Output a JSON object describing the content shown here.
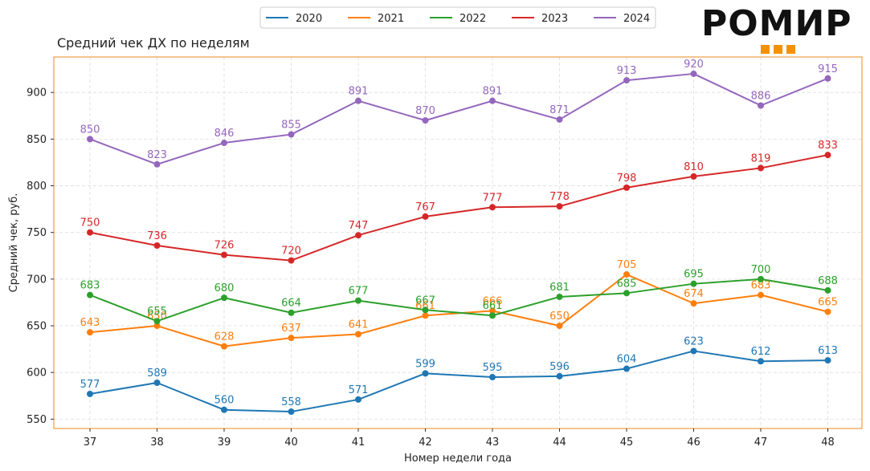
{
  "logo": {
    "text": "РОМИР",
    "accent_color": "#f39200"
  },
  "chart_data": {
    "type": "line",
    "title": "Средний чек ДХ по неделям",
    "xlabel": "Номер недели года",
    "ylabel": "Средний чек, руб.",
    "x": [
      37,
      38,
      39,
      40,
      41,
      42,
      43,
      44,
      45,
      46,
      47,
      48
    ],
    "ylim": [
      540,
      938
    ],
    "yticks": [
      550,
      600,
      650,
      700,
      750,
      800,
      850,
      900
    ],
    "grid": true,
    "legend_position": "top-center",
    "frame_color": "#e8891c",
    "series": [
      {
        "name": "2020",
        "color": "#1f77b4",
        "values": [
          577,
          589,
          560,
          558,
          571,
          599,
          595,
          596,
          604,
          623,
          612,
          613
        ]
      },
      {
        "name": "2021",
        "color": "#ff7f0e",
        "values": [
          643,
          650,
          628,
          637,
          641,
          661,
          666,
          650,
          705,
          674,
          683,
          665
        ]
      },
      {
        "name": "2022",
        "color": "#2ca02c",
        "values": [
          683,
          655,
          680,
          664,
          677,
          667,
          661,
          681,
          685,
          695,
          700,
          688
        ]
      },
      {
        "name": "2023",
        "color": "#d62728",
        "values": [
          750,
          736,
          726,
          720,
          747,
          767,
          777,
          778,
          798,
          810,
          819,
          833
        ]
      },
      {
        "name": "2024",
        "color": "#9467bd",
        "values": [
          850,
          823,
          846,
          855,
          891,
          870,
          891,
          871,
          913,
          920,
          886,
          915
        ]
      }
    ]
  }
}
